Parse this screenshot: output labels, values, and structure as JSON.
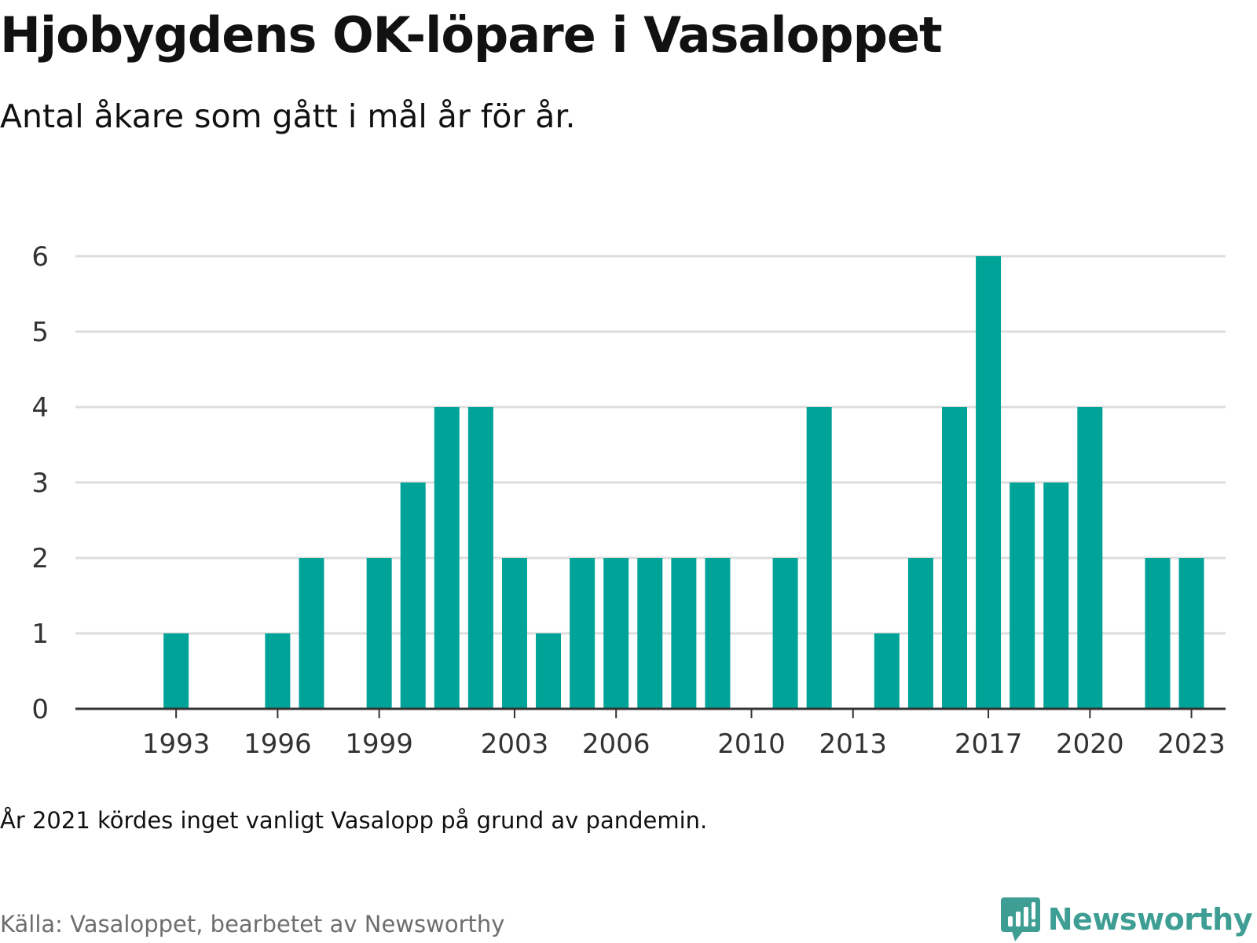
{
  "header": {
    "title": "Hjobygdens OK-löpare i Vasaloppet",
    "subtitle": "Antal åkare som gått i mål år för år."
  },
  "footer": {
    "note": "År 2021 kördes inget vanligt Vasalopp på grund av pandemin.",
    "source": "Källa: Vasaloppet, bearbetet av Newsworthy",
    "brand": "Newsworthy",
    "brand_icon": "chart-bubble-icon"
  },
  "colors": {
    "bar": "#00a398",
    "grid": "#dddddd",
    "axis": "#333333",
    "tick_text": "#333333",
    "brand": "#3f9e94"
  },
  "chart_data": {
    "type": "bar",
    "title": "Hjobygdens OK-löpare i Vasaloppet",
    "subtitle": "Antal åkare som gått i mål år för år.",
    "xlabel": "",
    "ylabel": "",
    "ylim": [
      0,
      6
    ],
    "yticks": [
      0,
      1,
      2,
      3,
      4,
      5,
      6
    ],
    "grid": true,
    "legend": "none",
    "x_ticks": [
      1993,
      1996,
      1999,
      2003,
      2006,
      2010,
      2013,
      2017,
      2020,
      2023
    ],
    "categories": [
      1991,
      1992,
      1993,
      1994,
      1995,
      1996,
      1997,
      1998,
      1999,
      2000,
      2001,
      2002,
      2003,
      2004,
      2005,
      2006,
      2007,
      2008,
      2009,
      2010,
      2011,
      2012,
      2013,
      2014,
      2015,
      2016,
      2017,
      2018,
      2019,
      2020,
      2021,
      2022,
      2023,
      2024
    ],
    "values": [
      null,
      null,
      1,
      null,
      null,
      1,
      2,
      null,
      2,
      3,
      4,
      4,
      2,
      1,
      2,
      2,
      2,
      2,
      2,
      null,
      2,
      4,
      null,
      1,
      2,
      4,
      6,
      3,
      3,
      4,
      null,
      2,
      2,
      null
    ]
  }
}
